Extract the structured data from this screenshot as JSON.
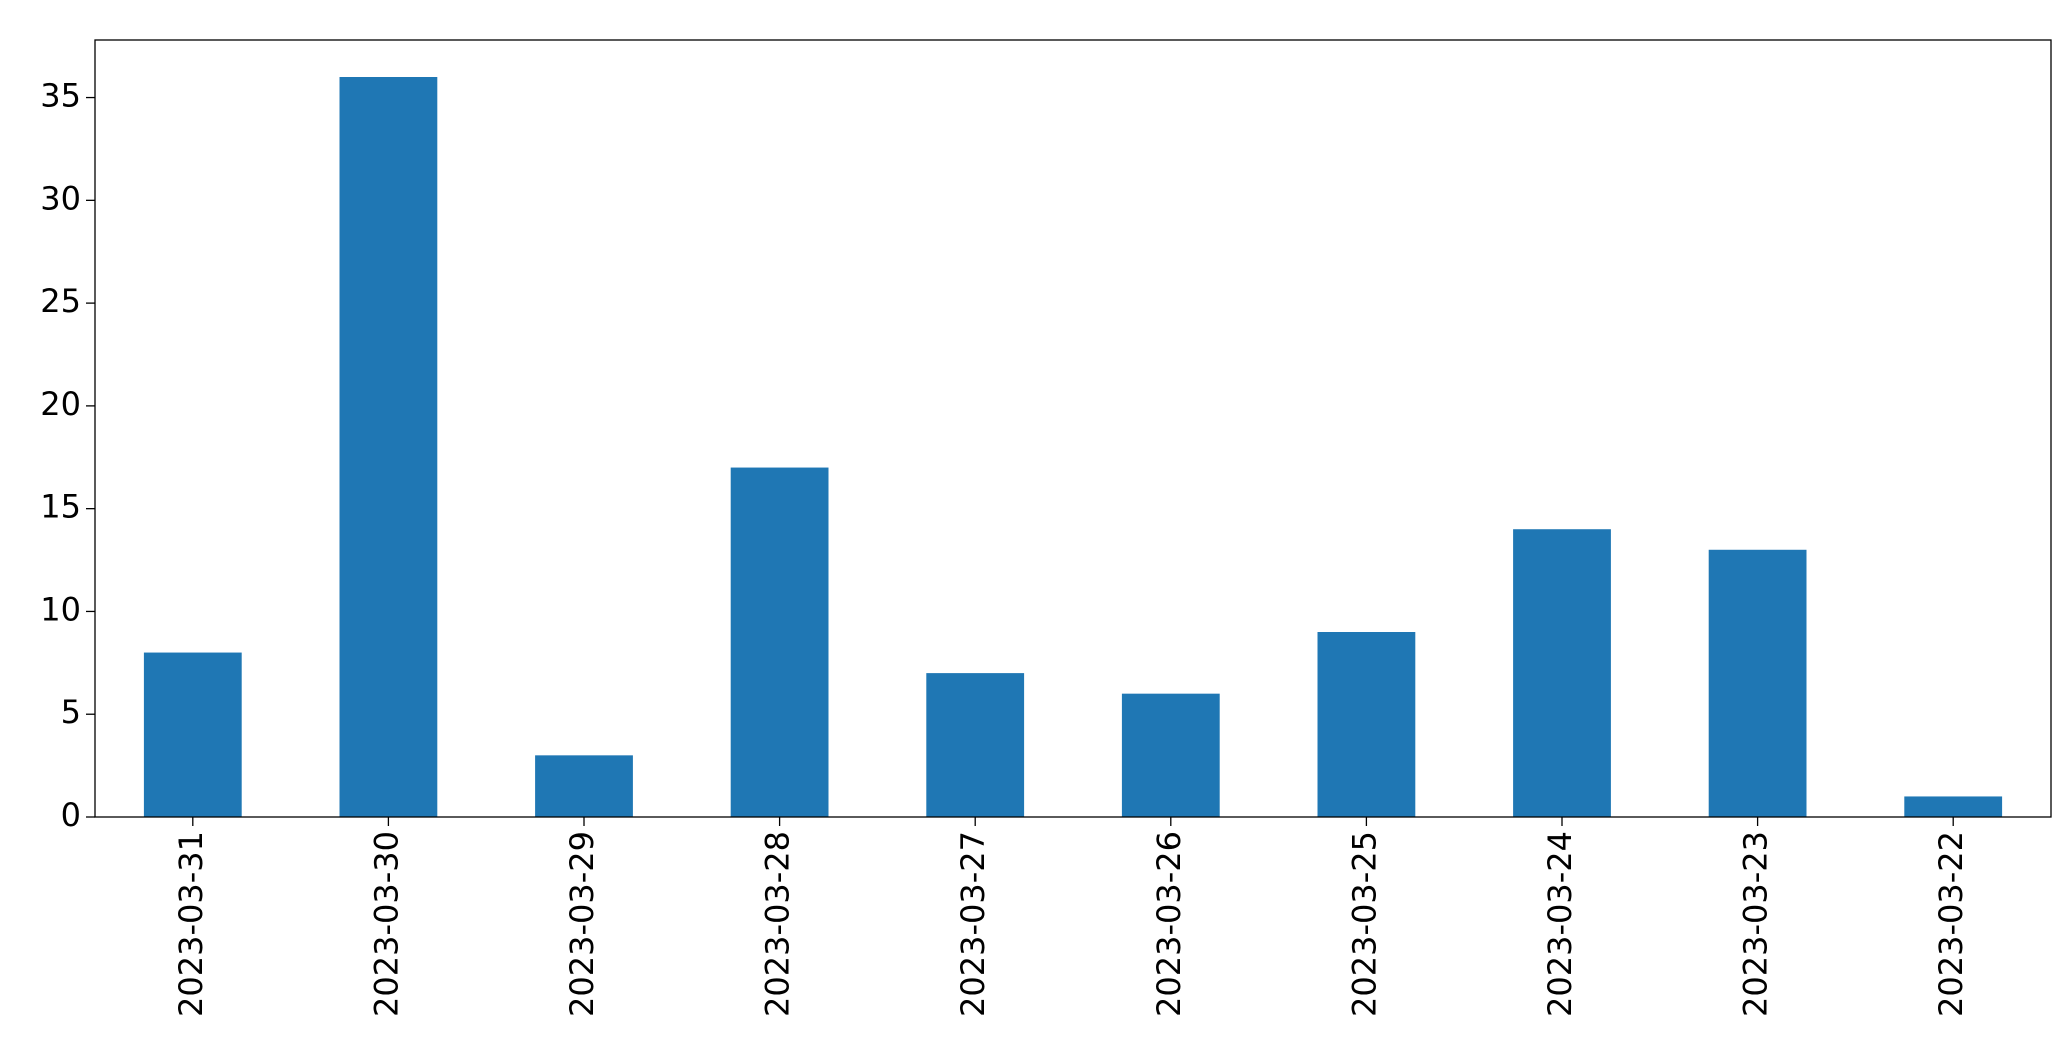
{
  "chart_data": {
    "type": "bar",
    "categories": [
      "2023-03-31",
      "2023-03-30",
      "2023-03-29",
      "2023-03-28",
      "2023-03-27",
      "2023-03-26",
      "2023-03-25",
      "2023-03-24",
      "2023-03-23",
      "2023-03-22"
    ],
    "values": [
      8,
      36,
      3,
      17,
      7,
      6,
      9,
      14,
      13,
      1
    ],
    "color": "#1f77b4",
    "ylim": [
      0,
      37.8
    ],
    "yticks": [
      0,
      5,
      10,
      15,
      20,
      25,
      30,
      35
    ],
    "grid": false
  }
}
